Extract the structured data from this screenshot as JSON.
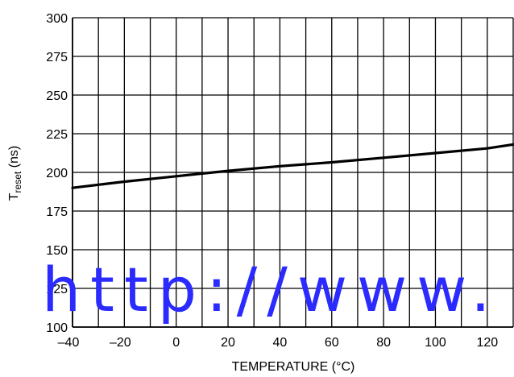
{
  "chart_data": {
    "type": "line",
    "title": "",
    "xlabel": "TEMPERATURE (°C)",
    "ylabel": {
      "main": "T",
      "sub": "reset",
      "unit": " (ns)"
    },
    "xlim": [
      -40,
      130
    ],
    "ylim": [
      100,
      300
    ],
    "x_ticks": [
      -40,
      -20,
      0,
      20,
      40,
      60,
      80,
      100,
      120
    ],
    "y_ticks": [
      100,
      125,
      150,
      175,
      200,
      225,
      250,
      275,
      300
    ],
    "x_grid_step": 10,
    "y_grid_step": 25,
    "grid": true,
    "legend": "none",
    "series": [
      {
        "x": [
          -40,
          -20,
          0,
          20,
          40,
          60,
          80,
          100,
          120,
          130
        ],
        "y": [
          190,
          194,
          197.5,
          201,
          204,
          206.5,
          209.5,
          212.5,
          215.5,
          218
        ],
        "color": "#000000"
      }
    ],
    "watermark": "http://www."
  }
}
